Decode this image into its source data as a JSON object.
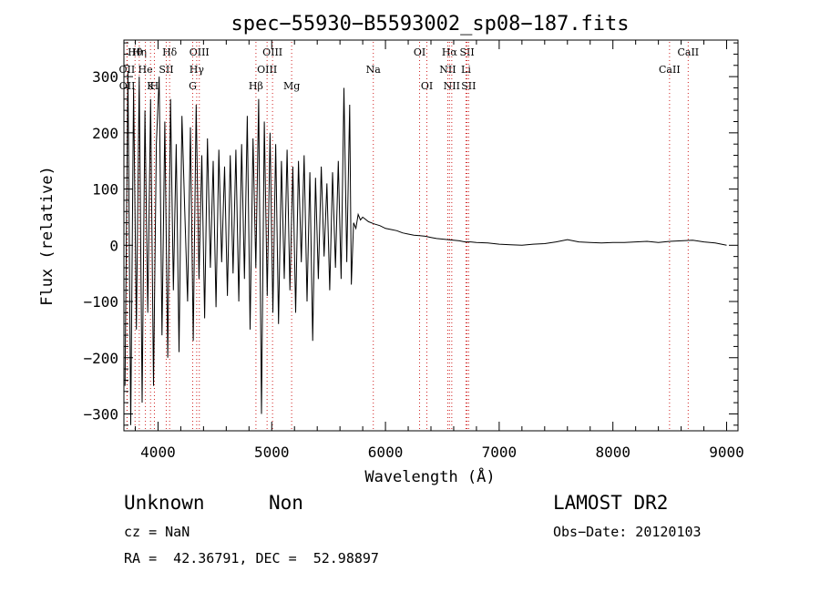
{
  "chart_data": {
    "type": "line",
    "title": "spec−55930−B5593002_sp08−187.fits",
    "xlabel": "Wavelength (Å)",
    "ylabel": "Flux (relative)",
    "xlim": [
      3700,
      9100
    ],
    "ylim": [
      -330,
      365
    ],
    "x_ticks": [
      4000,
      5000,
      6000,
      7000,
      8000,
      9000
    ],
    "x_tick_labels": [
      "4000",
      "5000",
      "6000",
      "7000",
      "8000",
      "9000"
    ],
    "y_ticks": [
      -300,
      -200,
      -100,
      0,
      100,
      200,
      300
    ],
    "y_tick_labels": [
      "−300",
      "−200",
      "−100",
      "0",
      "100",
      "200",
      "300"
    ],
    "grid": false,
    "series": [
      {
        "x": [
          3710,
          3735,
          3760,
          3785,
          3810,
          3835,
          3860,
          3885,
          3910,
          3935,
          3960,
          3985,
          4010,
          4035,
          4060,
          4085,
          4110,
          4135,
          4160,
          4185,
          4210,
          4235,
          4260,
          4285,
          4310,
          4335,
          4360,
          4385,
          4410,
          4435,
          4460,
          4485,
          4510,
          4535,
          4560,
          4585,
          4610,
          4635,
          4660,
          4685,
          4710,
          4735,
          4760,
          4785,
          4810,
          4835,
          4860,
          4885,
          4910,
          4935,
          4960,
          4985,
          5010,
          5035,
          5060,
          5085,
          5110,
          5135,
          5160,
          5185,
          5210,
          5235,
          5260,
          5285,
          5310,
          5335,
          5360,
          5385,
          5410,
          5435,
          5460,
          5485,
          5510,
          5535,
          5560,
          5585,
          5610,
          5635,
          5660,
          5685,
          5700,
          5720,
          5740,
          5760,
          5780,
          5800,
          5850,
          5900,
          5950,
          6000,
          6050,
          6100,
          6150,
          6200,
          6250,
          6300,
          6350,
          6400,
          6450,
          6500,
          6550,
          6600,
          6650,
          6700,
          6750,
          6800,
          6900,
          7000,
          7100,
          7200,
          7300,
          7400,
          7500,
          7600,
          7700,
          7800,
          7900,
          8000,
          8100,
          8200,
          8300,
          8400,
          8500,
          8600,
          8700,
          8800,
          8900,
          9000
        ],
        "y": [
          -250,
          310,
          -320,
          280,
          -150,
          300,
          -280,
          240,
          -120,
          260,
          -250,
          180,
          300,
          -160,
          220,
          -200,
          260,
          -80,
          180,
          -190,
          230,
          60,
          -100,
          210,
          -170,
          250,
          -60,
          160,
          -130,
          190,
          -40,
          150,
          -110,
          170,
          -30,
          140,
          -90,
          160,
          -50,
          170,
          -100,
          180,
          -60,
          230,
          -150,
          190,
          -40,
          260,
          -300,
          220,
          -90,
          200,
          -120,
          180,
          -140,
          150,
          -60,
          170,
          -80,
          140,
          -120,
          150,
          -30,
          160,
          -100,
          130,
          -170,
          120,
          -60,
          140,
          -20,
          110,
          -80,
          130,
          -40,
          150,
          -60,
          280,
          -30,
          250,
          -70,
          40,
          30,
          55,
          45,
          50,
          42,
          38,
          35,
          30,
          28,
          26,
          22,
          20,
          18,
          17,
          16,
          14,
          12,
          11,
          10,
          9,
          8,
          6,
          6,
          5,
          4,
          2,
          1,
          0,
          2,
          3,
          6,
          10,
          6,
          5,
          4,
          5,
          5,
          6,
          7,
          5,
          7,
          8,
          9,
          6,
          4,
          0
        ]
      }
    ],
    "line_markers": [
      {
        "label": "Hθ",
        "x": 3798,
        "row": 0
      },
      {
        "label": "Hη",
        "x": 3835,
        "row": 0
      },
      {
        "label": "Hδ",
        "x": 4102,
        "row": 0
      },
      {
        "label": "OIII",
        "x": 4363,
        "row": 0
      },
      {
        "label": "OIII",
        "x": 5007,
        "row": 0
      },
      {
        "label": "OI",
        "x": 6300,
        "row": 0
      },
      {
        "label": "Hα",
        "x": 6563,
        "row": 0
      },
      {
        "label": "SII",
        "x": 6717,
        "row": 0
      },
      {
        "label": "CaII",
        "x": 8662,
        "row": 0
      },
      {
        "label": "OII",
        "x": 3727,
        "row": 1
      },
      {
        "label": "He",
        "x": 3889,
        "row": 1
      },
      {
        "label": "SII",
        "x": 4072,
        "row": 1
      },
      {
        "label": "Hγ",
        "x": 4340,
        "row": 1
      },
      {
        "label": "OIII",
        "x": 4959,
        "row": 1
      },
      {
        "label": "Na",
        "x": 5893,
        "row": 1
      },
      {
        "label": "NII",
        "x": 6548,
        "row": 1
      },
      {
        "label": "Li",
        "x": 6708,
        "row": 1
      },
      {
        "label": "CaII",
        "x": 8498,
        "row": 1
      },
      {
        "label": "OII",
        "x": 3729,
        "row": 2
      },
      {
        "label": "K",
        "x": 3934,
        "row": 2
      },
      {
        "label": "H",
        "x": 3968,
        "row": 2
      },
      {
        "label": "G",
        "x": 4305,
        "row": 2
      },
      {
        "label": "Hβ",
        "x": 4861,
        "row": 2
      },
      {
        "label": "Mg",
        "x": 5175,
        "row": 2
      },
      {
        "label": "OI",
        "x": 6364,
        "row": 2
      },
      {
        "label": "NII",
        "x": 6583,
        "row": 2
      },
      {
        "label": "SII",
        "x": 6731,
        "row": 2
      }
    ],
    "marker_color": "#d02020"
  },
  "info": {
    "class": "Unknown",
    "subclass": "Non",
    "survey": "LAMOST DR2",
    "cz": "cz = NaN",
    "obs_date": "Obs−Date: 20120103",
    "coords": "RA =  42.36791, DEC =  52.98897"
  }
}
